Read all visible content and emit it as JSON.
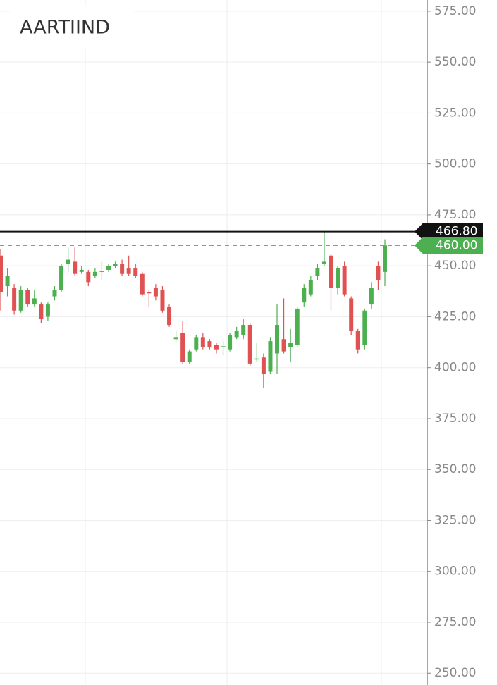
{
  "chart_data": {
    "type": "candlestick",
    "title": "AARTIIND",
    "up_color": "#4caf50",
    "down_color": "#e05252",
    "open": [
      455,
      440,
      439,
      428,
      438,
      431,
      431,
      425,
      435,
      438,
      451,
      452,
      447,
      447,
      445,
      447,
      448,
      450,
      451,
      449,
      449,
      446,
      437,
      439,
      438,
      430,
      414,
      417,
      403,
      409,
      415,
      413,
      411,
      410,
      409,
      415,
      416,
      421,
      404,
      405,
      398,
      407,
      414,
      410,
      411,
      432,
      436,
      445,
      451,
      455,
      439,
      450,
      434,
      418,
      411,
      431,
      450,
      447
    ],
    "close": [
      437,
      445,
      428,
      438,
      431,
      434,
      424,
      431,
      438,
      450,
      453,
      446,
      448,
      442,
      447,
      447.5,
      450,
      451,
      446,
      446,
      445,
      436,
      436.5,
      435,
      428,
      421,
      415,
      403,
      408,
      415,
      410,
      410,
      409,
      410.5,
      416,
      418,
      421,
      402,
      404.5,
      397,
      413,
      421,
      408,
      412,
      429,
      439,
      443,
      449,
      452,
      439,
      449,
      436,
      418,
      409,
      428,
      439,
      443,
      460
    ],
    "high": [
      458,
      449,
      441,
      440,
      439,
      438,
      432,
      432,
      440,
      451,
      459,
      459,
      450,
      448,
      449,
      452,
      451,
      452,
      453,
      455,
      451,
      447,
      438,
      441,
      440,
      431,
      418,
      423,
      409,
      416,
      417,
      414,
      412,
      413,
      417,
      420,
      424,
      422,
      412,
      407,
      415,
      431,
      434,
      419,
      430,
      441,
      445,
      451,
      467,
      456,
      450,
      452,
      435,
      419,
      429,
      442,
      452,
      463
    ],
    "low": [
      428,
      435,
      426,
      427,
      430,
      430,
      422,
      423,
      433,
      437,
      447,
      445,
      446,
      440,
      444,
      443,
      447,
      449,
      445,
      445,
      444,
      435,
      430,
      433,
      427,
      420,
      413,
      402,
      402,
      408,
      409,
      409,
      407,
      406,
      408,
      414,
      414,
      401,
      403,
      390,
      397,
      397,
      407,
      403,
      410,
      430,
      435,
      443,
      450,
      428,
      436,
      435,
      416,
      407,
      409,
      429,
      438,
      440
    ],
    "ylim": [
      244.2,
      580.5
    ],
    "yticks": [
      {
        "value": 250,
        "label": "250.00"
      },
      {
        "value": 275,
        "label": "275.00"
      },
      {
        "value": 300,
        "label": "300.00"
      },
      {
        "value": 325,
        "label": "325.00"
      },
      {
        "value": 350,
        "label": "350.00"
      },
      {
        "value": 375,
        "label": "375.00"
      },
      {
        "value": 400,
        "label": "400.00"
      },
      {
        "value": 425,
        "label": "425.00"
      },
      {
        "value": 450,
        "label": "450.00"
      },
      {
        "value": 475,
        "label": "475.00"
      },
      {
        "value": 500,
        "label": "500.00"
      },
      {
        "value": 525,
        "label": "525.00"
      },
      {
        "value": 550,
        "label": "550.00"
      },
      {
        "value": 575,
        "label": "575.00"
      }
    ],
    "grid": true,
    "price_lines": [
      {
        "value": 466.8,
        "label": "466.80",
        "color": "#111111",
        "dashed": false
      },
      {
        "value": 460,
        "label": "460.00",
        "color": "#4caf50",
        "dashed": true
      }
    ]
  }
}
